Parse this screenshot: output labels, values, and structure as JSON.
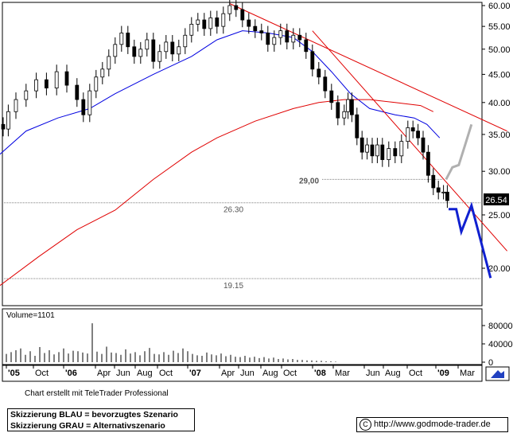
{
  "chart_data": {
    "type": "candlestick",
    "price_axis": {
      "ticks": [
        "60.00",
        "55.00",
        "50.00",
        "45.00",
        "40.00",
        "35.00",
        "30.00",
        "25.00",
        "20.00"
      ],
      "scale": "log"
    },
    "time_axis": {
      "ticks": [
        "'05",
        "Oct",
        "'06",
        "Apr",
        "Jun",
        "Aug",
        "Oct",
        "'07",
        "Apr",
        "Jun",
        "Aug",
        "Oct",
        "'08",
        "Mar",
        "Jun",
        "Aug",
        "Oct",
        "'09",
        "Mar"
      ]
    },
    "last_price": "26.54",
    "levels": [
      {
        "label": "29,00",
        "value": 29.0,
        "color": "#808080"
      },
      {
        "label": "26.30",
        "value": 26.3,
        "color": "#808080"
      },
      {
        "label": "19.15",
        "value": 19.15,
        "color": "#808080"
      }
    ],
    "price_series": [
      [
        2005.28,
        36.5
      ],
      [
        2005.32,
        35.8
      ],
      [
        2005.36,
        38.5
      ],
      [
        2005.42,
        40.5
      ],
      [
        2005.5,
        42.0
      ],
      [
        2005.58,
        44.0
      ],
      [
        2005.66,
        42.5
      ],
      [
        2005.74,
        45.5
      ],
      [
        2005.82,
        43.0
      ],
      [
        2005.9,
        40.5
      ],
      [
        2005.95,
        38.0
      ],
      [
        2006.0,
        42.0
      ],
      [
        2006.05,
        44.5
      ],
      [
        2006.1,
        46.0
      ],
      [
        2006.15,
        48.5
      ],
      [
        2006.2,
        51.0
      ],
      [
        2006.25,
        53.5
      ],
      [
        2006.3,
        50.5
      ],
      [
        2006.35,
        48.5
      ],
      [
        2006.4,
        50.0
      ],
      [
        2006.45,
        52.0
      ],
      [
        2006.5,
        47.5
      ],
      [
        2006.55,
        49.5
      ],
      [
        2006.6,
        51.5
      ],
      [
        2006.65,
        49.0
      ],
      [
        2006.7,
        50.5
      ],
      [
        2006.75,
        53.0
      ],
      [
        2006.8,
        55.5
      ],
      [
        2006.85,
        56.5
      ],
      [
        2006.9,
        54.5
      ],
      [
        2006.95,
        57.0
      ],
      [
        2007.0,
        55.0
      ],
      [
        2007.05,
        58.0
      ],
      [
        2007.1,
        60.0
      ],
      [
        2007.15,
        59.0
      ],
      [
        2007.2,
        56.5
      ],
      [
        2007.25,
        55.0
      ],
      [
        2007.3,
        54.0
      ],
      [
        2007.35,
        53.5
      ],
      [
        2007.4,
        51.0
      ],
      [
        2007.45,
        52.5
      ],
      [
        2007.5,
        54.0
      ],
      [
        2007.55,
        51.5
      ],
      [
        2007.6,
        53.0
      ],
      [
        2007.65,
        52.0
      ],
      [
        2007.7,
        49.5
      ],
      [
        2007.75,
        46.0
      ],
      [
        2007.8,
        44.5
      ],
      [
        2007.85,
        42.0
      ],
      [
        2007.9,
        40.0
      ],
      [
        2007.95,
        37.5
      ],
      [
        2008.0,
        38.5
      ],
      [
        2008.03,
        40.5
      ],
      [
        2008.06,
        38.0
      ],
      [
        2008.1,
        34.5
      ],
      [
        2008.14,
        32.5
      ],
      [
        2008.18,
        33.5
      ],
      [
        2008.22,
        32.0
      ],
      [
        2008.26,
        33.5
      ],
      [
        2008.3,
        31.5
      ],
      [
        2008.35,
        33.0
      ],
      [
        2008.4,
        32.0
      ],
      [
        2008.45,
        34.0
      ],
      [
        2008.5,
        36.0
      ],
      [
        2008.54,
        35.5
      ],
      [
        2008.58,
        34.5
      ],
      [
        2008.62,
        32.5
      ],
      [
        2008.66,
        29.5
      ],
      [
        2008.7,
        28.0
      ],
      [
        2008.74,
        27.5
      ],
      [
        2008.78,
        27.5
      ],
      [
        2008.81,
        26.54
      ]
    ],
    "moving_averages": [
      {
        "color": "#0000e0",
        "points": [
          [
            2005.28,
            32.0
          ],
          [
            2005.5,
            35.5
          ],
          [
            2005.75,
            37.5
          ],
          [
            2006.0,
            39.0
          ],
          [
            2006.2,
            41.5
          ],
          [
            2006.5,
            45.0
          ],
          [
            2006.8,
            48.5
          ],
          [
            2007.0,
            52.0
          ],
          [
            2007.2,
            54.0
          ],
          [
            2007.4,
            53.5
          ],
          [
            2007.6,
            52.5
          ],
          [
            2007.75,
            49.5
          ],
          [
            2007.9,
            45.5
          ],
          [
            2008.05,
            41.5
          ],
          [
            2008.2,
            39.0
          ],
          [
            2008.4,
            38.0
          ],
          [
            2008.55,
            37.5
          ],
          [
            2008.65,
            36.5
          ],
          [
            2008.75,
            34.5
          ]
        ]
      },
      {
        "color": "#e00000",
        "points": [
          [
            2005.28,
            18.5
          ],
          [
            2005.6,
            21.0
          ],
          [
            2005.9,
            23.5
          ],
          [
            2006.2,
            25.5
          ],
          [
            2006.5,
            29.0
          ],
          [
            2006.8,
            32.5
          ],
          [
            2007.0,
            34.5
          ],
          [
            2007.3,
            37.0
          ],
          [
            2007.6,
            39.0
          ],
          [
            2007.8,
            40.0
          ],
          [
            2008.0,
            40.5
          ],
          [
            2008.2,
            40.5
          ],
          [
            2008.4,
            40.0
          ],
          [
            2008.6,
            39.5
          ],
          [
            2008.7,
            38.5
          ]
        ]
      }
    ],
    "trendlines": [
      {
        "color": "#e00000",
        "points": [
          [
            2007.1,
            60.5
          ],
          [
            2009.28,
            35.5
          ]
        ]
      },
      {
        "color": "#e00000",
        "points": [
          [
            2007.75,
            54.0
          ],
          [
            2009.28,
            21.5
          ]
        ]
      }
    ],
    "scenario_blue": [
      [
        2008.82,
        25.6
      ],
      [
        2008.88,
        25.6
      ],
      [
        2008.92,
        23.3
      ],
      [
        2009.0,
        26.0
      ],
      [
        2009.15,
        19.2
      ]
    ],
    "scenario_gray": [
      [
        2008.8,
        29.0
      ],
      [
        2008.85,
        30.5
      ],
      [
        2008.9,
        30.8
      ],
      [
        2008.95,
        33.5
      ],
      [
        2009.0,
        36.5
      ]
    ],
    "volume": {
      "label": "Volume=1101",
      "ticks": [
        "80000",
        "40000",
        "0"
      ],
      "values": [
        18000,
        22000,
        26000,
        30000,
        16000,
        24000,
        14000,
        33000,
        20000,
        26000,
        17000,
        22000,
        30000,
        19000,
        25000,
        24000,
        21000,
        19000,
        85000,
        23000,
        18000,
        34000,
        21000,
        20000,
        16000,
        28000,
        19000,
        22000,
        15000,
        24000,
        31000,
        18000,
        17000,
        22000,
        16000,
        25000,
        20000,
        30000,
        24000,
        18000,
        15000,
        14000,
        21000,
        17000,
        15000,
        19000,
        13000,
        16000,
        12000,
        11000,
        14000,
        10000,
        12000,
        9000,
        11000,
        8000,
        10000,
        7000,
        8000,
        6000,
        7000,
        5000,
        5000,
        4000,
        4000,
        3000,
        3000,
        2000,
        2000,
        1101
      ]
    }
  },
  "footer": {
    "credit": "Chart erstellt mit TeleTrader Professional",
    "legend_blue": "Skizzierung BLAU = bevorzugtes Szenario",
    "legend_gray": "Skizzierung GRAU = Alternativszenario",
    "url": "http://www.godmode-trader.de"
  }
}
